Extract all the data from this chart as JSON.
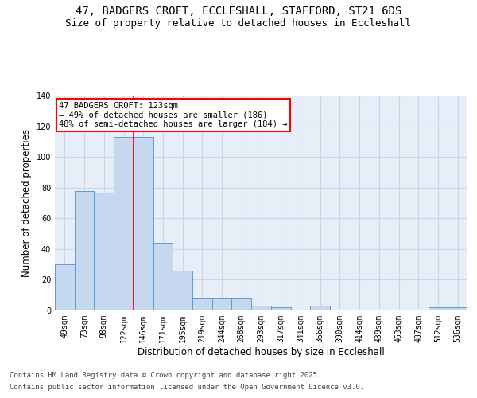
{
  "title_line1": "47, BADGERS CROFT, ECCLESHALL, STAFFORD, ST21 6DS",
  "title_line2": "Size of property relative to detached houses in Eccleshall",
  "xlabel": "Distribution of detached houses by size in Eccleshall",
  "ylabel": "Number of detached properties",
  "categories": [
    "49sqm",
    "73sqm",
    "98sqm",
    "122sqm",
    "146sqm",
    "171sqm",
    "195sqm",
    "219sqm",
    "244sqm",
    "268sqm",
    "293sqm",
    "317sqm",
    "341sqm",
    "366sqm",
    "390sqm",
    "414sqm",
    "439sqm",
    "463sqm",
    "487sqm",
    "512sqm",
    "536sqm"
  ],
  "values": [
    30,
    78,
    77,
    113,
    113,
    44,
    26,
    8,
    8,
    8,
    3,
    2,
    0,
    3,
    0,
    0,
    0,
    0,
    0,
    2,
    2
  ],
  "bar_color": "#c5d8f0",
  "bar_edge_color": "#5b9bd5",
  "red_line_x": 3.5,
  "annotation_text": "47 BADGERS CROFT: 123sqm\n← 49% of detached houses are smaller (186)\n48% of semi-detached houses are larger (184) →",
  "annotation_box_color": "white",
  "annotation_box_edge_color": "red",
  "red_line_color": "red",
  "grid_color": "#c8d4e8",
  "bg_color": "#e8eef8",
  "ylim": [
    0,
    140
  ],
  "yticks": [
    0,
    20,
    40,
    60,
    80,
    100,
    120,
    140
  ],
  "footer_line1": "Contains HM Land Registry data © Crown copyright and database right 2025.",
  "footer_line2": "Contains public sector information licensed under the Open Government Licence v3.0.",
  "title_fontsize": 10,
  "subtitle_fontsize": 9,
  "tick_fontsize": 7,
  "ylabel_fontsize": 8.5,
  "xlabel_fontsize": 8.5,
  "annotation_fontsize": 7.5,
  "footer_fontsize": 6.5
}
